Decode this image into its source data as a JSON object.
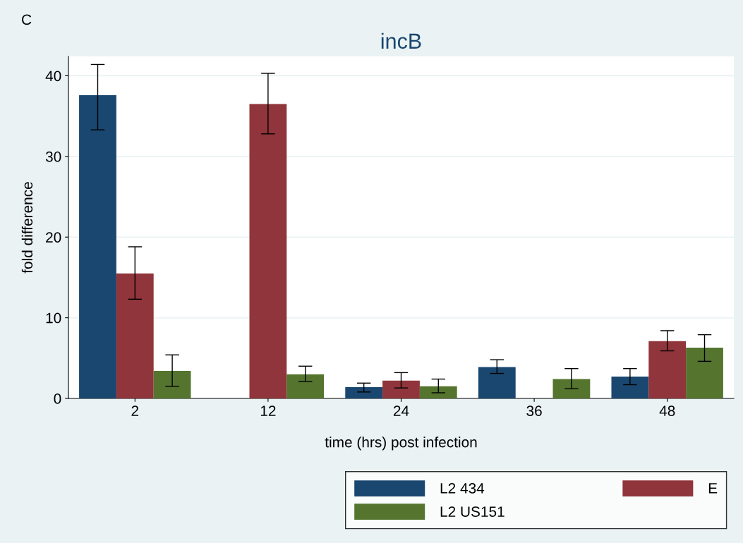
{
  "chart_data": {
    "type": "bar",
    "title": "incB",
    "xlabel": "time (hrs) post infection",
    "ylabel": "fold difference",
    "annotations": [
      "C"
    ],
    "categories": [
      "2",
      "12",
      "24",
      "36",
      "48"
    ],
    "series": [
      {
        "name": "L2 434",
        "color": "#1a476f",
        "values": [
          37.6,
          null,
          1.4,
          3.9,
          2.7
        ],
        "errors": [
          [
            33.3,
            41.4
          ],
          null,
          [
            0.8,
            1.9
          ],
          [
            3.1,
            4.8
          ],
          [
            1.7,
            3.7
          ]
        ]
      },
      {
        "name": "E",
        "color": "#90353b",
        "values": [
          15.5,
          36.5,
          2.2,
          null,
          7.1
        ],
        "errors": [
          [
            12.3,
            18.8
          ],
          [
            32.8,
            40.3
          ],
          [
            1.3,
            3.2
          ],
          null,
          [
            5.9,
            8.4
          ]
        ]
      },
      {
        "name": "L2 US151",
        "color": "#55752f",
        "values": [
          3.4,
          3.0,
          1.5,
          2.4,
          6.3
        ],
        "errors": [
          [
            1.5,
            5.4
          ],
          [
            2.1,
            4.0
          ],
          [
            0.7,
            2.4
          ],
          [
            1.2,
            3.7
          ],
          [
            4.6,
            7.9
          ]
        ]
      }
    ],
    "ylim": [
      0,
      42.4
    ],
    "yticks": [
      0,
      10,
      20,
      30,
      40
    ],
    "grid": "y",
    "legend": "bottom right"
  }
}
